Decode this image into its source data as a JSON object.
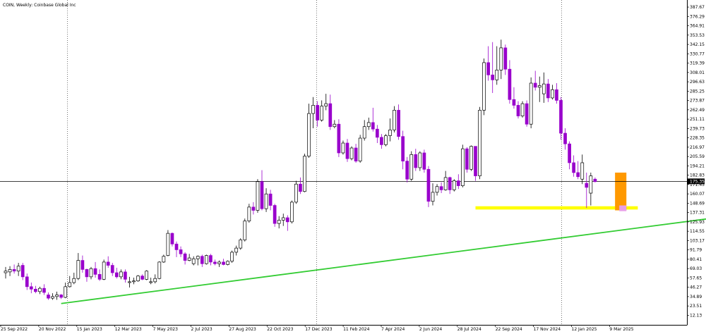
{
  "title": "COIN, Weekly:  Coinbase Global Inc",
  "chart_data": {
    "type": "candlestick",
    "title": "COIN, Weekly:  Coinbase Global Inc",
    "ylim": [
      0.5,
      396.3
    ],
    "current_price": 175.35,
    "current_price_label": "175.35",
    "y_ticks": [
      "387.67",
      "376.29",
      "364.91",
      "353.53",
      "342.15",
      "330.77",
      "319.39",
      "308.01",
      "296.63",
      "285.25",
      "273.87",
      "262.49",
      "251.11",
      "239.73",
      "228.35",
      "216.97",
      "205.59",
      "194.21",
      "182.83",
      "171.45",
      "160.07",
      "148.69",
      "137.31",
      "125.93",
      "114.55",
      "103.17",
      "91.79",
      "80.41",
      "69.03",
      "57.65",
      "46.27",
      "34.89",
      "23.51",
      "12.13"
    ],
    "x_ticks": [
      "25 Sep 2022",
      "20 Nov 2022",
      "15 Jan 2023",
      "12 Mar 2023",
      "7 May 2023",
      "2 Jul 2023",
      "27 Aug 2023",
      "22 Oct 2023",
      "17 Dec 2023",
      "11 Feb 2024",
      "7 Apr 2024",
      "2 Jun 2024",
      "28 Jul 2024",
      "22 Sep 2024",
      "17 Nov 2024",
      "12 Jan 2025",
      "9 Mar 2025"
    ],
    "grid": "vertical dotted lines",
    "bullish_color": "#ffffff",
    "bearish_color": "#9900cc",
    "candles": [
      {
        "o": 64,
        "h": 71,
        "l": 57,
        "c": 66
      },
      {
        "o": 65,
        "h": 72,
        "l": 60,
        "c": 68
      },
      {
        "o": 68,
        "h": 74,
        "l": 63,
        "c": 66
      },
      {
        "o": 66,
        "h": 76,
        "l": 60,
        "c": 72
      },
      {
        "o": 73,
        "h": 76,
        "l": 55,
        "c": 59
      },
      {
        "o": 59,
        "h": 63,
        "l": 43,
        "c": 47
      },
      {
        "o": 47,
        "h": 52,
        "l": 39,
        "c": 44
      },
      {
        "o": 44,
        "h": 48,
        "l": 39,
        "c": 41
      },
      {
        "o": 41,
        "h": 47,
        "l": 38,
        "c": 45
      },
      {
        "o": 45,
        "h": 50,
        "l": 37,
        "c": 40
      },
      {
        "o": 37,
        "h": 40,
        "l": 31,
        "c": 33
      },
      {
        "o": 33,
        "h": 39,
        "l": 31,
        "c": 35
      },
      {
        "o": 35,
        "h": 41,
        "l": 31,
        "c": 37
      },
      {
        "o": 37,
        "h": 38,
        "l": 32,
        "c": 34
      },
      {
        "o": 34,
        "h": 52,
        "l": 33,
        "c": 47
      },
      {
        "o": 47,
        "h": 60,
        "l": 46,
        "c": 52
      },
      {
        "o": 52,
        "h": 64,
        "l": 50,
        "c": 57
      },
      {
        "o": 57,
        "h": 88,
        "l": 55,
        "c": 79
      },
      {
        "o": 79,
        "h": 85,
        "l": 64,
        "c": 68
      },
      {
        "o": 68,
        "h": 69,
        "l": 53,
        "c": 59
      },
      {
        "o": 59,
        "h": 71,
        "l": 56,
        "c": 69
      },
      {
        "o": 69,
        "h": 77,
        "l": 58,
        "c": 62
      },
      {
        "o": 62,
        "h": 68,
        "l": 54,
        "c": 56
      },
      {
        "o": 56,
        "h": 80,
        "l": 55,
        "c": 77
      },
      {
        "o": 77,
        "h": 84,
        "l": 70,
        "c": 73
      },
      {
        "o": 73,
        "h": 76,
        "l": 60,
        "c": 64
      },
      {
        "o": 64,
        "h": 70,
        "l": 57,
        "c": 59
      },
      {
        "o": 59,
        "h": 68,
        "l": 56,
        "c": 65
      },
      {
        "o": 65,
        "h": 68,
        "l": 52,
        "c": 56
      },
      {
        "o": 52,
        "h": 59,
        "l": 46,
        "c": 53
      },
      {
        "o": 53,
        "h": 58,
        "l": 50,
        "c": 54
      },
      {
        "o": 54,
        "h": 61,
        "l": 53,
        "c": 60
      },
      {
        "o": 60,
        "h": 62,
        "l": 55,
        "c": 56
      },
      {
        "o": 56,
        "h": 67,
        "l": 55,
        "c": 66
      },
      {
        "o": 52,
        "h": 58,
        "l": 50,
        "c": 53
      },
      {
        "o": 53,
        "h": 62,
        "l": 51,
        "c": 57
      },
      {
        "o": 57,
        "h": 78,
        "l": 56,
        "c": 77
      },
      {
        "o": 77,
        "h": 86,
        "l": 76,
        "c": 84
      },
      {
        "o": 85,
        "h": 116,
        "l": 84,
        "c": 112
      },
      {
        "o": 112,
        "h": 113,
        "l": 96,
        "c": 99
      },
      {
        "o": 99,
        "h": 102,
        "l": 83,
        "c": 92
      },
      {
        "o": 92,
        "h": 96,
        "l": 83,
        "c": 87
      },
      {
        "o": 87,
        "h": 89,
        "l": 74,
        "c": 79
      },
      {
        "o": 79,
        "h": 87,
        "l": 78,
        "c": 82
      },
      {
        "o": 75,
        "h": 84,
        "l": 73,
        "c": 81
      },
      {
        "o": 81,
        "h": 85,
        "l": 73,
        "c": 84
      },
      {
        "o": 84,
        "h": 86,
        "l": 71,
        "c": 75
      },
      {
        "o": 75,
        "h": 86,
        "l": 74,
        "c": 85
      },
      {
        "o": 85,
        "h": 87,
        "l": 73,
        "c": 77
      },
      {
        "o": 77,
        "h": 80,
        "l": 73,
        "c": 75
      },
      {
        "o": 75,
        "h": 79,
        "l": 71,
        "c": 77
      },
      {
        "o": 77,
        "h": 81,
        "l": 73,
        "c": 74
      },
      {
        "o": 74,
        "h": 79,
        "l": 73,
        "c": 78
      },
      {
        "o": 78,
        "h": 91,
        "l": 76,
        "c": 89
      },
      {
        "o": 89,
        "h": 97,
        "l": 85,
        "c": 94
      },
      {
        "o": 94,
        "h": 106,
        "l": 92,
        "c": 104
      },
      {
        "o": 104,
        "h": 130,
        "l": 102,
        "c": 127
      },
      {
        "o": 127,
        "h": 148,
        "l": 125,
        "c": 144
      },
      {
        "o": 144,
        "h": 150,
        "l": 135,
        "c": 140
      },
      {
        "o": 140,
        "h": 178,
        "l": 137,
        "c": 175
      },
      {
        "o": 175,
        "h": 189,
        "l": 140,
        "c": 142
      },
      {
        "o": 142,
        "h": 167,
        "l": 138,
        "c": 160
      },
      {
        "o": 160,
        "h": 165,
        "l": 140,
        "c": 146
      },
      {
        "o": 146,
        "h": 148,
        "l": 120,
        "c": 124
      },
      {
        "o": 124,
        "h": 133,
        "l": 118,
        "c": 128
      },
      {
        "o": 128,
        "h": 136,
        "l": 121,
        "c": 131
      },
      {
        "o": 131,
        "h": 134,
        "l": 115,
        "c": 126
      },
      {
        "o": 126,
        "h": 152,
        "l": 124,
        "c": 150
      },
      {
        "o": 150,
        "h": 176,
        "l": 148,
        "c": 172
      },
      {
        "o": 172,
        "h": 180,
        "l": 160,
        "c": 163
      },
      {
        "o": 163,
        "h": 209,
        "l": 162,
        "c": 206
      },
      {
        "o": 206,
        "h": 270,
        "l": 204,
        "c": 258
      },
      {
        "o": 258,
        "h": 278,
        "l": 240,
        "c": 268
      },
      {
        "o": 268,
        "h": 273,
        "l": 242,
        "c": 250
      },
      {
        "o": 250,
        "h": 274,
        "l": 248,
        "c": 267
      },
      {
        "o": 267,
        "h": 282,
        "l": 262,
        "c": 270
      },
      {
        "o": 270,
        "h": 281,
        "l": 238,
        "c": 242
      },
      {
        "o": 242,
        "h": 250,
        "l": 240,
        "c": 245
      },
      {
        "o": 245,
        "h": 251,
        "l": 205,
        "c": 210
      },
      {
        "o": 210,
        "h": 225,
        "l": 208,
        "c": 222
      },
      {
        "o": 222,
        "h": 227,
        "l": 199,
        "c": 203
      },
      {
        "o": 203,
        "h": 218,
        "l": 201,
        "c": 216
      },
      {
        "o": 216,
        "h": 221,
        "l": 198,
        "c": 200
      },
      {
        "o": 200,
        "h": 232,
        "l": 198,
        "c": 228
      },
      {
        "o": 228,
        "h": 250,
        "l": 225,
        "c": 242
      },
      {
        "o": 242,
        "h": 253,
        "l": 238,
        "c": 247
      },
      {
        "o": 247,
        "h": 265,
        "l": 236,
        "c": 239
      },
      {
        "o": 239,
        "h": 244,
        "l": 222,
        "c": 229
      },
      {
        "o": 229,
        "h": 233,
        "l": 215,
        "c": 220
      },
      {
        "o": 220,
        "h": 233,
        "l": 218,
        "c": 231
      },
      {
        "o": 231,
        "h": 252,
        "l": 224,
        "c": 238
      },
      {
        "o": 238,
        "h": 267,
        "l": 235,
        "c": 262
      },
      {
        "o": 262,
        "h": 269,
        "l": 226,
        "c": 230
      },
      {
        "o": 230,
        "h": 237,
        "l": 190,
        "c": 200
      },
      {
        "o": 200,
        "h": 205,
        "l": 174,
        "c": 178
      },
      {
        "o": 178,
        "h": 212,
        "l": 176,
        "c": 208
      },
      {
        "o": 208,
        "h": 215,
        "l": 188,
        "c": 192
      },
      {
        "o": 192,
        "h": 212,
        "l": 188,
        "c": 210
      },
      {
        "o": 210,
        "h": 214,
        "l": 186,
        "c": 190
      },
      {
        "o": 190,
        "h": 194,
        "l": 144,
        "c": 151
      },
      {
        "o": 151,
        "h": 173,
        "l": 146,
        "c": 162
      },
      {
        "o": 162,
        "h": 172,
        "l": 158,
        "c": 169
      },
      {
        "o": 169,
        "h": 174,
        "l": 161,
        "c": 165
      },
      {
        "o": 165,
        "h": 188,
        "l": 164,
        "c": 180
      },
      {
        "o": 180,
        "h": 181,
        "l": 160,
        "c": 165
      },
      {
        "o": 165,
        "h": 178,
        "l": 163,
        "c": 176
      },
      {
        "o": 176,
        "h": 184,
        "l": 166,
        "c": 170
      },
      {
        "o": 170,
        "h": 220,
        "l": 168,
        "c": 215
      },
      {
        "o": 215,
        "h": 217,
        "l": 186,
        "c": 190
      },
      {
        "o": 190,
        "h": 219,
        "l": 188,
        "c": 218
      },
      {
        "o": 218,
        "h": 215,
        "l": 176,
        "c": 182
      },
      {
        "o": 182,
        "h": 266,
        "l": 178,
        "c": 262
      },
      {
        "o": 262,
        "h": 325,
        "l": 256,
        "c": 320
      },
      {
        "o": 320,
        "h": 340,
        "l": 298,
        "c": 305
      },
      {
        "o": 305,
        "h": 345,
        "l": 283,
        "c": 299
      },
      {
        "o": 299,
        "h": 340,
        "l": 293,
        "c": 311
      },
      {
        "o": 311,
        "h": 348,
        "l": 300,
        "c": 338
      },
      {
        "o": 338,
        "h": 342,
        "l": 305,
        "c": 312
      },
      {
        "o": 312,
        "h": 323,
        "l": 270,
        "c": 275
      },
      {
        "o": 275,
        "h": 290,
        "l": 264,
        "c": 268
      },
      {
        "o": 268,
        "h": 273,
        "l": 252,
        "c": 255
      },
      {
        "o": 255,
        "h": 273,
        "l": 253,
        "c": 270
      },
      {
        "o": 270,
        "h": 274,
        "l": 242,
        "c": 245
      },
      {
        "o": 245,
        "h": 302,
        "l": 240,
        "c": 295
      },
      {
        "o": 295,
        "h": 310,
        "l": 286,
        "c": 290
      },
      {
        "o": 290,
        "h": 303,
        "l": 272,
        "c": 292
      },
      {
        "o": 282,
        "h": 308,
        "l": 271,
        "c": 294
      },
      {
        "o": 294,
        "h": 300,
        "l": 272,
        "c": 277
      },
      {
        "o": 277,
        "h": 293,
        "l": 275,
        "c": 287
      },
      {
        "o": 287,
        "h": 295,
        "l": 270,
        "c": 274
      },
      {
        "o": 274,
        "h": 278,
        "l": 226,
        "c": 234
      },
      {
        "o": 234,
        "h": 240,
        "l": 214,
        "c": 221
      },
      {
        "o": 221,
        "h": 224,
        "l": 190,
        "c": 198
      },
      {
        "o": 198,
        "h": 207,
        "l": 181,
        "c": 186
      },
      {
        "o": 186,
        "h": 200,
        "l": 178,
        "c": 181
      },
      {
        "o": 178,
        "h": 208,
        "l": 172,
        "c": 198
      },
      {
        "o": 173,
        "h": 186,
        "l": 143,
        "c": 168
      },
      {
        "o": 161,
        "h": 186,
        "l": 146,
        "c": 182
      },
      {
        "o": 178,
        "h": 180,
        "l": 174,
        "c": 175
      }
    ],
    "annotations": [
      {
        "type": "trendline",
        "color": "#33cc33",
        "from": {
          "candle": 13,
          "price": 26.5
        },
        "to": {
          "candle": 200,
          "price": 154
        }
      },
      {
        "type": "horizontal_zone",
        "color": "#ffff00",
        "from_candle": 110,
        "to_candle": 148,
        "price_low": 141,
        "price_high": 145
      },
      {
        "type": "box",
        "color": "#ff9900",
        "from_candle": 143,
        "to_candle": 145,
        "price_low": 140,
        "price_high": 186
      },
      {
        "type": "box",
        "color": "#e8a0e8",
        "from_candle": 144,
        "to_candle": 145,
        "price_low": 139,
        "price_high": 146
      },
      {
        "type": "horizontal_line",
        "color": "#000000",
        "price": 175.35
      }
    ]
  }
}
